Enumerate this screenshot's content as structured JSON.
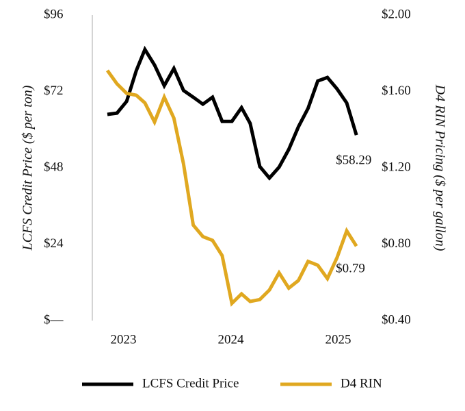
{
  "chart_data": {
    "type": "line",
    "y_label": "LCFS Credit Price ($ per ton)",
    "y2_label": "D4 RIN Pricing ($ per gallon)",
    "x": [
      2022.85,
      2022.94,
      2023.03,
      2023.12,
      2023.2,
      2023.29,
      2023.38,
      2023.47,
      2023.56,
      2023.65,
      2023.74,
      2023.83,
      2023.92,
      2024.01,
      2024.1,
      2024.18,
      2024.27,
      2024.36,
      2024.45,
      2024.54,
      2024.63,
      2024.72,
      2024.81,
      2024.9,
      2024.99,
      2025.08,
      2025.17
    ],
    "xlim": [
      2022.71,
      2025.29
    ],
    "xticks": [
      2023,
      2024,
      2025
    ],
    "ylim": [
      0,
      96
    ],
    "yticks": [
      {
        "value": 0,
        "label": "$—"
      },
      {
        "value": 24,
        "label": "$24"
      },
      {
        "value": 48,
        "label": "$48"
      },
      {
        "value": 72,
        "label": "$72"
      },
      {
        "value": 96,
        "label": "$96"
      }
    ],
    "y2lim": [
      0.4,
      2.0
    ],
    "y2ticks": [
      {
        "value": 0.4,
        "label": "$0.40"
      },
      {
        "value": 0.8,
        "label": "$0.80"
      },
      {
        "value": 1.2,
        "label": "$1.20"
      },
      {
        "value": 1.6,
        "label": "$1.60"
      },
      {
        "value": 2.0,
        "label": "$2.00"
      }
    ],
    "legend": "bottom",
    "series": [
      {
        "name": "LCFS Credit Price",
        "color": "#000000",
        "values": [
          64.8,
          65.2,
          68.9,
          78.6,
          85.2,
          80.3,
          73.8,
          79.2,
          72.3,
          70.2,
          68.0,
          70.2,
          62.6,
          62.6,
          66.9,
          62.0,
          48.4,
          44.8,
          48.2,
          53.8,
          60.9,
          66.7,
          75.3,
          76.4,
          72.8,
          68.4,
          58.29
        ],
        "value_labels": [
          null,
          null,
          null,
          null,
          null,
          null,
          null,
          null,
          null,
          null,
          null,
          null,
          null,
          null,
          null,
          null,
          null,
          null,
          null,
          null,
          null,
          null,
          null,
          null,
          null,
          null,
          "$58.29"
        ]
      },
      {
        "name": "D4 RIN",
        "color": "#e0a820",
        "axis": "y2",
        "values": [
          1.71,
          1.64,
          1.59,
          1.58,
          1.54,
          1.44,
          1.57,
          1.46,
          1.22,
          0.9,
          0.84,
          0.82,
          0.74,
          0.49,
          0.54,
          0.5,
          0.51,
          0.56,
          0.65,
          0.57,
          0.61,
          0.71,
          0.69,
          0.62,
          0.73,
          0.87,
          0.79
        ],
        "value_labels": [
          null,
          null,
          null,
          null,
          null,
          null,
          null,
          null,
          null,
          null,
          null,
          null,
          null,
          null,
          null,
          null,
          null,
          null,
          null,
          null,
          null,
          null,
          null,
          null,
          null,
          null,
          "$0.79"
        ]
      }
    ]
  }
}
